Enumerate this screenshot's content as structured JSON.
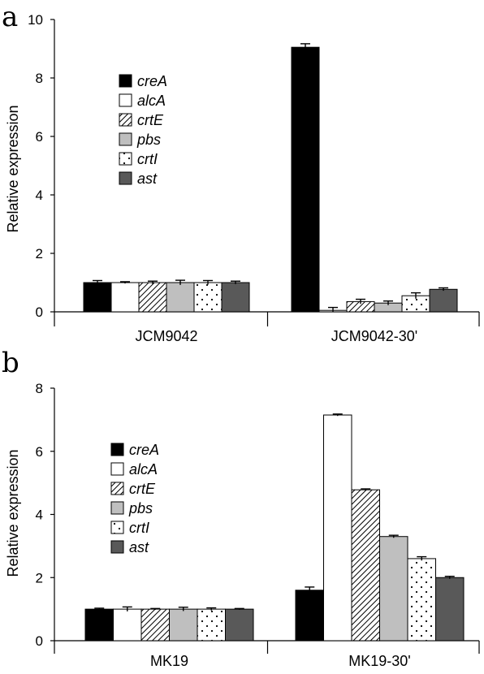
{
  "legend_style": {
    "creA": {
      "fill": "#000000",
      "pattern": "solid"
    },
    "alcA": {
      "fill": "#ffffff",
      "pattern": "solid"
    },
    "crtE": {
      "fill": "#ffffff",
      "pattern": "diagonal-hatch"
    },
    "pbs": {
      "fill": "#bfbfbf",
      "pattern": "solid"
    },
    "crtI": {
      "fill": "#ffffff",
      "pattern": "dots"
    },
    "ast": {
      "fill": "#595959",
      "pattern": "solid"
    }
  },
  "chart_data": [
    {
      "panel": "a",
      "type": "bar",
      "ylabel": "Relative expression",
      "xlabel": "",
      "ylim": [
        0,
        10
      ],
      "yticks": [
        0,
        2,
        4,
        6,
        8,
        10
      ],
      "grid": false,
      "legend": "upper-left",
      "categories": [
        "JCM9042",
        "JCM9042-30'"
      ],
      "series": [
        {
          "name": "creA",
          "values": [
            1.0,
            9.05
          ],
          "errors": [
            0.07,
            0.12
          ]
        },
        {
          "name": "alcA",
          "values": [
            1.0,
            0.05
          ],
          "errors": [
            0.03,
            0.1
          ]
        },
        {
          "name": "crtE",
          "values": [
            1.0,
            0.35
          ],
          "errors": [
            0.05,
            0.08
          ]
        },
        {
          "name": "pbs",
          "values": [
            1.0,
            0.3
          ],
          "errors": [
            0.08,
            0.07
          ]
        },
        {
          "name": "crtI",
          "values": [
            1.0,
            0.55
          ],
          "errors": [
            0.07,
            0.1
          ]
        },
        {
          "name": "ast",
          "values": [
            1.0,
            0.77
          ],
          "errors": [
            0.05,
            0.05
          ]
        }
      ]
    },
    {
      "panel": "b",
      "type": "bar",
      "ylabel": "Relative expression",
      "xlabel": "",
      "ylim": [
        0,
        8
      ],
      "yticks": [
        0,
        2,
        4,
        6,
        8
      ],
      "grid": false,
      "legend": "left",
      "categories": [
        "MK19",
        "MK19-30'"
      ],
      "series": [
        {
          "name": "creA",
          "values": [
            1.0,
            1.6
          ],
          "errors": [
            0.03,
            0.1
          ]
        },
        {
          "name": "alcA",
          "values": [
            1.0,
            7.15
          ],
          "errors": [
            0.07,
            0.03
          ]
        },
        {
          "name": "crtE",
          "values": [
            1.0,
            4.78
          ],
          "errors": [
            0.02,
            0.03
          ]
        },
        {
          "name": "pbs",
          "values": [
            1.0,
            3.3
          ],
          "errors": [
            0.06,
            0.04
          ]
        },
        {
          "name": "crtI",
          "values": [
            1.0,
            2.6
          ],
          "errors": [
            0.04,
            0.06
          ]
        },
        {
          "name": "ast",
          "values": [
            1.0,
            2.0
          ],
          "errors": [
            0.02,
            0.04
          ]
        }
      ]
    }
  ]
}
